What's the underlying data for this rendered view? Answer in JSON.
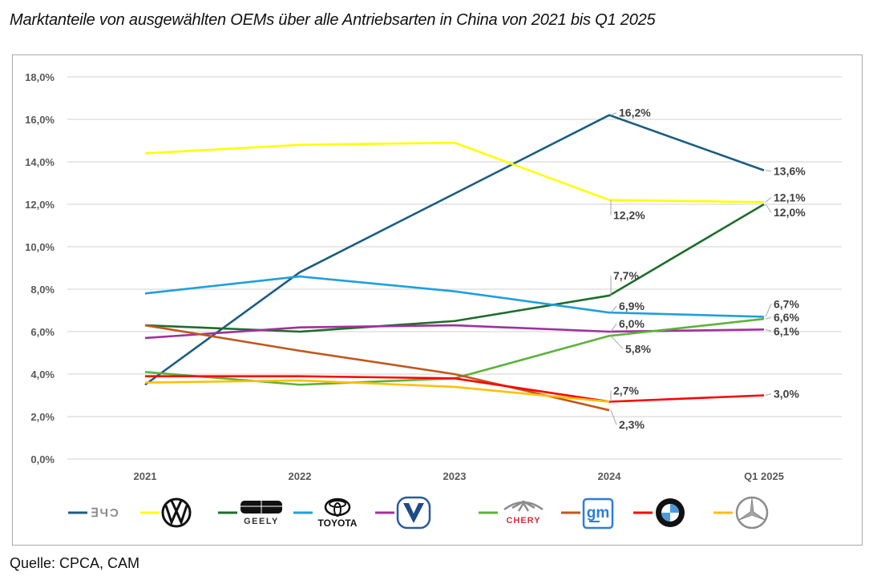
{
  "page": {
    "title": "Marktanteile von ausgewählten OEMs über alle Antriebsarten in China von 2021 bis Q1 2025",
    "source": "Quelle: CPCA, CAM"
  },
  "chart_data": {
    "type": "line",
    "title": "Marktanteile von ausgewählten OEMs über alle Antriebsarten in China von 2021 bis Q1 2025",
    "xlabel": "",
    "ylabel": "",
    "categories": [
      "2021",
      "2022",
      "2023",
      "2024",
      "Q1 2025"
    ],
    "ylim": [
      0,
      18
    ],
    "yticks": [
      0,
      2,
      4,
      6,
      8,
      10,
      12,
      14,
      16,
      18
    ],
    "ytick_labels": [
      "0,0%",
      "2,0%",
      "4,0%",
      "6,0%",
      "8,0%",
      "10,0%",
      "12,0%",
      "14,0%",
      "16,0%",
      "18,0%"
    ],
    "grid": "horizontal",
    "legend_position": "bottom",
    "series": [
      {
        "name": "BYD",
        "logo": "byd-logo",
        "color": "#1b5e80",
        "values": [
          3.5,
          8.8,
          12.5,
          16.2,
          13.6
        ],
        "labels": [
          null,
          null,
          null,
          "16,2%",
          "13,6%"
        ]
      },
      {
        "name": "Volkswagen",
        "logo": "vw-logo",
        "color": "#ffff00",
        "values": [
          14.4,
          14.8,
          14.9,
          12.2,
          12.1
        ],
        "labels": [
          null,
          null,
          null,
          "12,2%",
          "12,1%"
        ]
      },
      {
        "name": "Geely",
        "logo": "geely-logo",
        "legend_text": "GEELY",
        "color": "#1e6e2a",
        "values": [
          6.3,
          6.0,
          6.5,
          7.7,
          12.0
        ],
        "labels": [
          null,
          null,
          null,
          "7,7%",
          "12,0%"
        ]
      },
      {
        "name": "Toyota",
        "logo": "toyota-logo",
        "legend_text": "TOYOTA",
        "color": "#1ea0db",
        "values": [
          7.8,
          8.6,
          7.9,
          6.9,
          6.7
        ],
        "labels": [
          null,
          null,
          null,
          "6,9%",
          "6,7%"
        ]
      },
      {
        "name": "Changan",
        "logo": "changan-logo",
        "color": "#a0309e",
        "values": [
          5.7,
          6.2,
          6.3,
          6.0,
          6.1
        ],
        "labels": [
          null,
          null,
          null,
          "6,0%",
          "6,1%"
        ]
      },
      {
        "name": "Chery",
        "logo": "chery-logo",
        "legend_text": "CHERY",
        "color": "#5cb33a",
        "values": [
          4.1,
          3.5,
          3.8,
          5.8,
          6.6
        ],
        "labels": [
          null,
          null,
          null,
          "5,8%",
          "6,6%"
        ]
      },
      {
        "name": "GM",
        "logo": "gm-logo",
        "legend_text": "gm",
        "color": "#c0571f",
        "values": [
          6.3,
          5.1,
          4.0,
          2.3,
          null
        ],
        "labels": [
          null,
          null,
          null,
          "2,3%",
          null
        ]
      },
      {
        "name": "BMW",
        "logo": "bmw-logo",
        "color": "#ff0000",
        "values": [
          3.9,
          3.9,
          3.8,
          2.7,
          3.0
        ],
        "labels": [
          null,
          null,
          null,
          "2,7%",
          "3,0%"
        ]
      },
      {
        "name": "Mercedes-Benz",
        "logo": "mercedes-logo",
        "color": "#ffc000",
        "values": [
          3.6,
          3.7,
          3.4,
          2.7,
          null
        ],
        "labels": [
          null,
          null,
          null,
          null,
          null
        ]
      }
    ]
  }
}
